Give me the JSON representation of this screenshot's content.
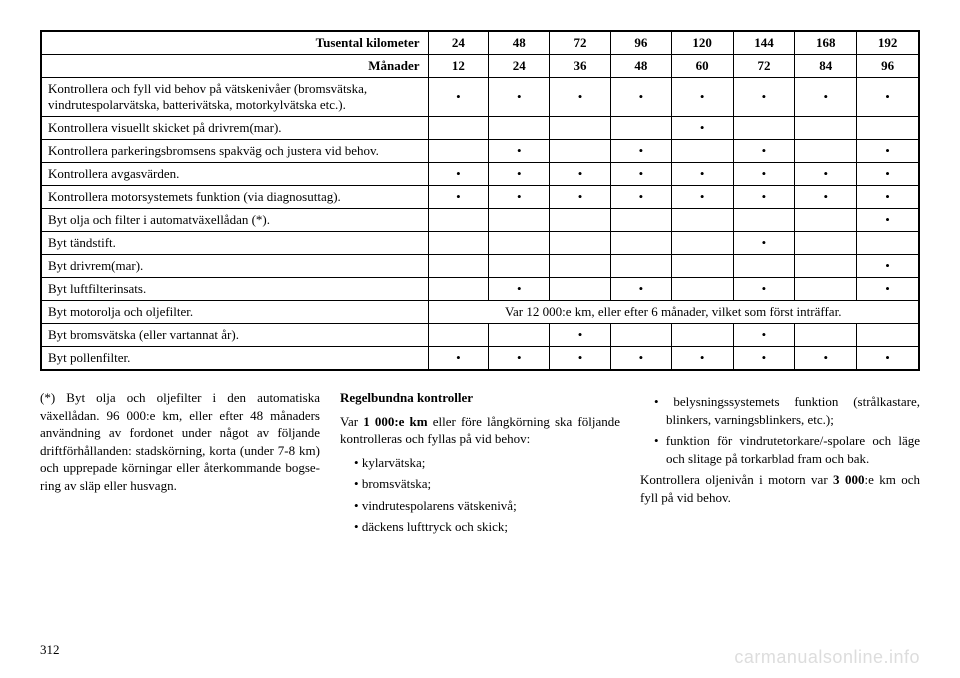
{
  "table": {
    "header1_label": "Tusental kilometer",
    "header1_values": [
      "24",
      "48",
      "72",
      "96",
      "120",
      "144",
      "168",
      "192"
    ],
    "header2_label": "Månader",
    "header2_values": [
      "12",
      "24",
      "36",
      "48",
      "60",
      "72",
      "84",
      "96"
    ],
    "rows": [
      {
        "label": "Kontrollera och fyll vid behov på vätskenivåer (broms­vätska, vindrutespolarvätska, batterivätska, motorkylvät­ska etc.).",
        "cells": [
          "•",
          "•",
          "•",
          "•",
          "•",
          "•",
          "•",
          "•"
        ]
      },
      {
        "label": "Kontrollera visuellt skicket på drivrem(mar).",
        "cells": [
          "",
          "",
          "",
          "",
          "•",
          "",
          "",
          ""
        ]
      },
      {
        "label": "Kontrollera parkeringsbromsens spakväg och justera vid behov.",
        "cells": [
          "",
          "•",
          "",
          "•",
          "",
          "•",
          "",
          "•"
        ]
      },
      {
        "label": "Kontrollera avgasvärden.",
        "cells": [
          "•",
          "•",
          "•",
          "•",
          "•",
          "•",
          "•",
          "•"
        ]
      },
      {
        "label": "Kontrollera motorsystemets funktion (via diagnosuttag).",
        "cells": [
          "•",
          "•",
          "•",
          "•",
          "•",
          "•",
          "•",
          "•"
        ]
      },
      {
        "label": "Byt olja och filter i automatväxellådan (*).",
        "cells": [
          "",
          "",
          "",
          "",
          "",
          "",
          "",
          "•"
        ]
      },
      {
        "label": "Byt tändstift.",
        "cells": [
          "",
          "",
          "",
          "",
          "",
          "•",
          "",
          ""
        ]
      },
      {
        "label": "Byt drivrem(mar).",
        "cells": [
          "",
          "",
          "",
          "",
          "",
          "",
          "",
          "•"
        ]
      },
      {
        "label": "Byt luftfilterinsats.",
        "cells": [
          "",
          "•",
          "",
          "•",
          "",
          "•",
          "",
          "•"
        ]
      }
    ],
    "oil_row_label": "Byt motorolja och oljefilter.",
    "oil_row_text": "Var 12 000:e km, eller efter 6 månader, vilket som först inträffar.",
    "rows_after": [
      {
        "label": "Byt bromsvätska (eller vartannat år).",
        "cells": [
          "",
          "",
          "•",
          "",
          "",
          "•",
          "",
          ""
        ]
      },
      {
        "label": "Byt pollenfilter.",
        "cells": [
          "•",
          "•",
          "•",
          "•",
          "•",
          "•",
          "•",
          "•"
        ]
      }
    ]
  },
  "col1": {
    "text": "(*) Byt olja och oljefilter i den auto­matiska växellådan. 96 000:e km, el­ler efter 48 månaders användning av fordonet under något av följande driftförhållanden: stadskörning, korta (under 7-8 km) och upprepade körningar eller återkommande bogse­ring av släp eller husvagn."
  },
  "col2": {
    "title": "Regelbundna kontroller",
    "intro_pre": "Var ",
    "intro_bold": "1 000:e km",
    "intro_post": " eller före långkörning ska följande kontrolleras och fyllas på vid behov:",
    "items": [
      "kylarvätska;",
      "bromsvätska;",
      "vindrutespolarens vätskenivå;",
      "däckens lufttryck och skick;"
    ]
  },
  "col3": {
    "items": [
      "belysningssystemets funktion (strålkastare, blinkers, varnings­blinkers, etc.);",
      "funktion för vindrutetorkare/-spolare och läge och slitage på tor­karblad fram och bak."
    ],
    "tail_pre": "Kontrollera oljenivån i motorn var ",
    "tail_bold": "3 000",
    "tail_post": ":e km och fyll på vid behov."
  },
  "pagenum": "312",
  "watermark": "carmanualsonline.info"
}
